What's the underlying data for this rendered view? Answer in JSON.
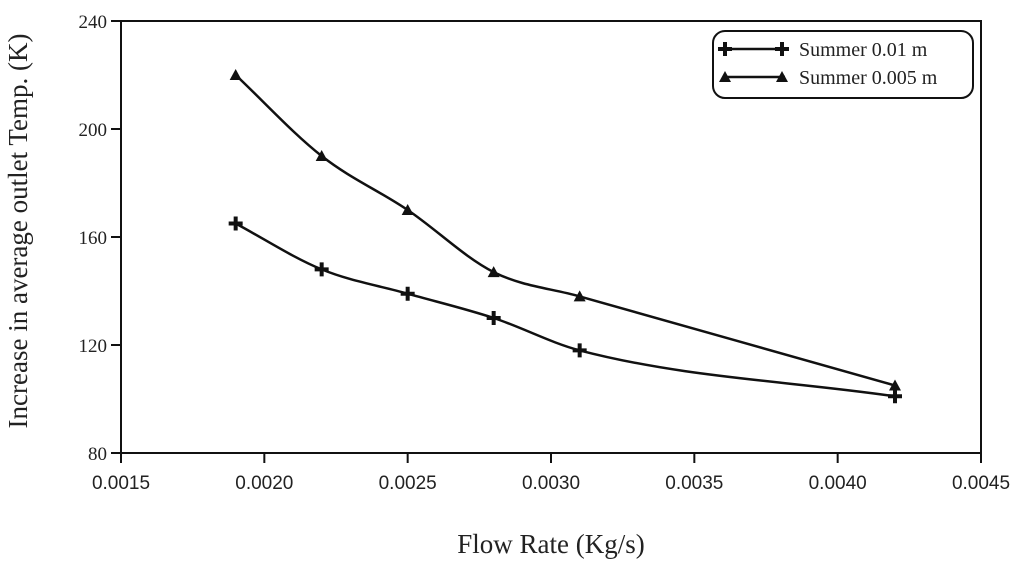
{
  "chart_data": {
    "type": "line",
    "title": "",
    "xlabel": "Flow Rate (Kg/s)",
    "ylabel": "Increase in average outlet Temp. (K)",
    "xlim": [
      0.0015,
      0.0045
    ],
    "ylim": [
      80,
      240
    ],
    "x_ticks": [
      "0.0015",
      "0.0020",
      "0.0025",
      "0.0030",
      "0.0035",
      "0.0040",
      "0.0045"
    ],
    "y_ticks": [
      "80",
      "120",
      "160",
      "200",
      "240"
    ],
    "legend_position": "top-right",
    "series": [
      {
        "name": "Summer 0.01 m",
        "marker": "plus",
        "x": [
          0.0019,
          0.0022,
          0.0025,
          0.0028,
          0.0031,
          0.0042
        ],
        "values": [
          165,
          148,
          139,
          130,
          118,
          101
        ]
      },
      {
        "name": "Summer 0.005 m",
        "marker": "triangle",
        "x": [
          0.0019,
          0.0022,
          0.0025,
          0.0028,
          0.0031,
          0.0042
        ],
        "values": [
          220,
          190,
          170,
          147,
          138,
          105
        ]
      }
    ]
  }
}
